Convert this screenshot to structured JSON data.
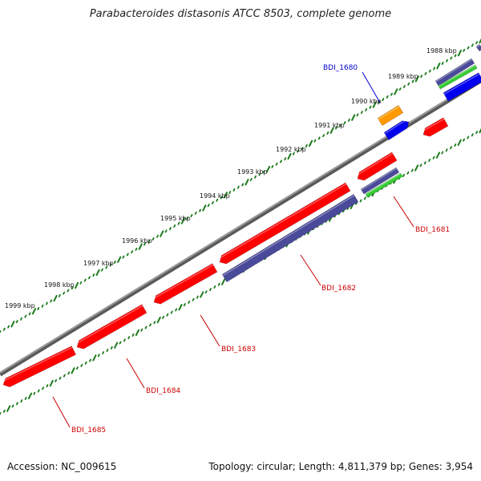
{
  "title": "Parabacteroides distasonis ATCC 8503, complete genome",
  "footer": {
    "accession": "Accession: NC_009615",
    "summary": "Topology: circular; Length: 4,811,379 bp; Genes: 3,954"
  },
  "colors": {
    "backbone": "#7f7f7f",
    "tick": "#1a7a1a",
    "cds": "#ff0000",
    "cds_label": "#cc0000",
    "gene_purple": "#4a4a9a",
    "gene_green": "#33cc33",
    "gene_blue": "#0000ee",
    "gene_orange": "#ff9900",
    "highlight_label": "#0000cc"
  },
  "scale_labels": [
    "1988 kbp",
    "1989 kbp",
    "1990 kbp",
    "1991 kbp",
    "1992 kbp",
    "1993 kbp",
    "1994 kbp",
    "1995 kbp",
    "1996 kbp",
    "1997 kbp",
    "1998 kbp",
    "1999 kbp"
  ],
  "gene_labels": [
    {
      "text": "BDI_1680",
      "color": "highlight"
    },
    {
      "text": "BDI_1681",
      "color": "cds"
    },
    {
      "text": "BDI_1682",
      "color": "cds"
    },
    {
      "text": "BDI_1683",
      "color": "cds"
    },
    {
      "text": "BDI_1684",
      "color": "cds"
    },
    {
      "text": "BDI_1685",
      "color": "cds"
    }
  ]
}
